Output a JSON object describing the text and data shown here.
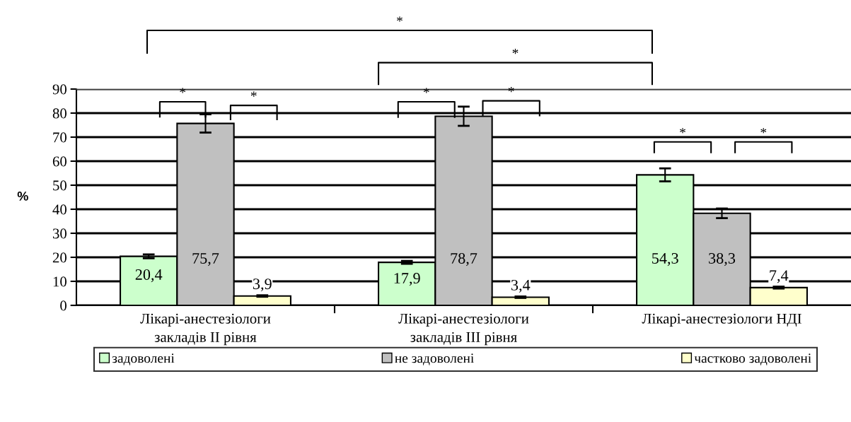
{
  "chart_data": {
    "type": "bar",
    "ylabel": "%",
    "categories": [
      "Лікарі-анестезіологи\nзакладів ІІ рівня",
      "Лікарі-анестезіологи\nзакладів ІІІ рівня",
      "Лікарі-анестезіологи НДІ"
    ],
    "series": [
      {
        "name": "задоволені",
        "color": "#ccffcc",
        "values": [
          20.4,
          17.9,
          54.3
        ],
        "errors": [
          0.8,
          0.6,
          2.7
        ],
        "value_labels": [
          "20,4",
          "17,9",
          "54,3"
        ]
      },
      {
        "name": "не задоволені",
        "color": "#c0c0c0",
        "values": [
          75.7,
          78.7,
          38.3
        ],
        "errors": [
          3.8,
          4.0,
          2.0
        ],
        "value_labels": [
          "75,7",
          "78,7",
          "38,3"
        ]
      },
      {
        "name": "частково задоволені",
        "color": "#ffffcc",
        "values": [
          3.9,
          3.4,
          7.4
        ],
        "errors": [
          0.3,
          0.3,
          0.4
        ],
        "value_labels": [
          "3,9",
          "3,4",
          "7,4"
        ]
      }
    ],
    "ylim": [
      0,
      90
    ],
    "yticks": [
      0,
      10,
      20,
      30,
      40,
      50,
      60,
      70,
      80,
      90
    ],
    "grid": "y",
    "legend": "bottom",
    "annotations": [
      "*",
      "*",
      "*",
      "*",
      "*",
      "*",
      "*",
      "*"
    ]
  }
}
